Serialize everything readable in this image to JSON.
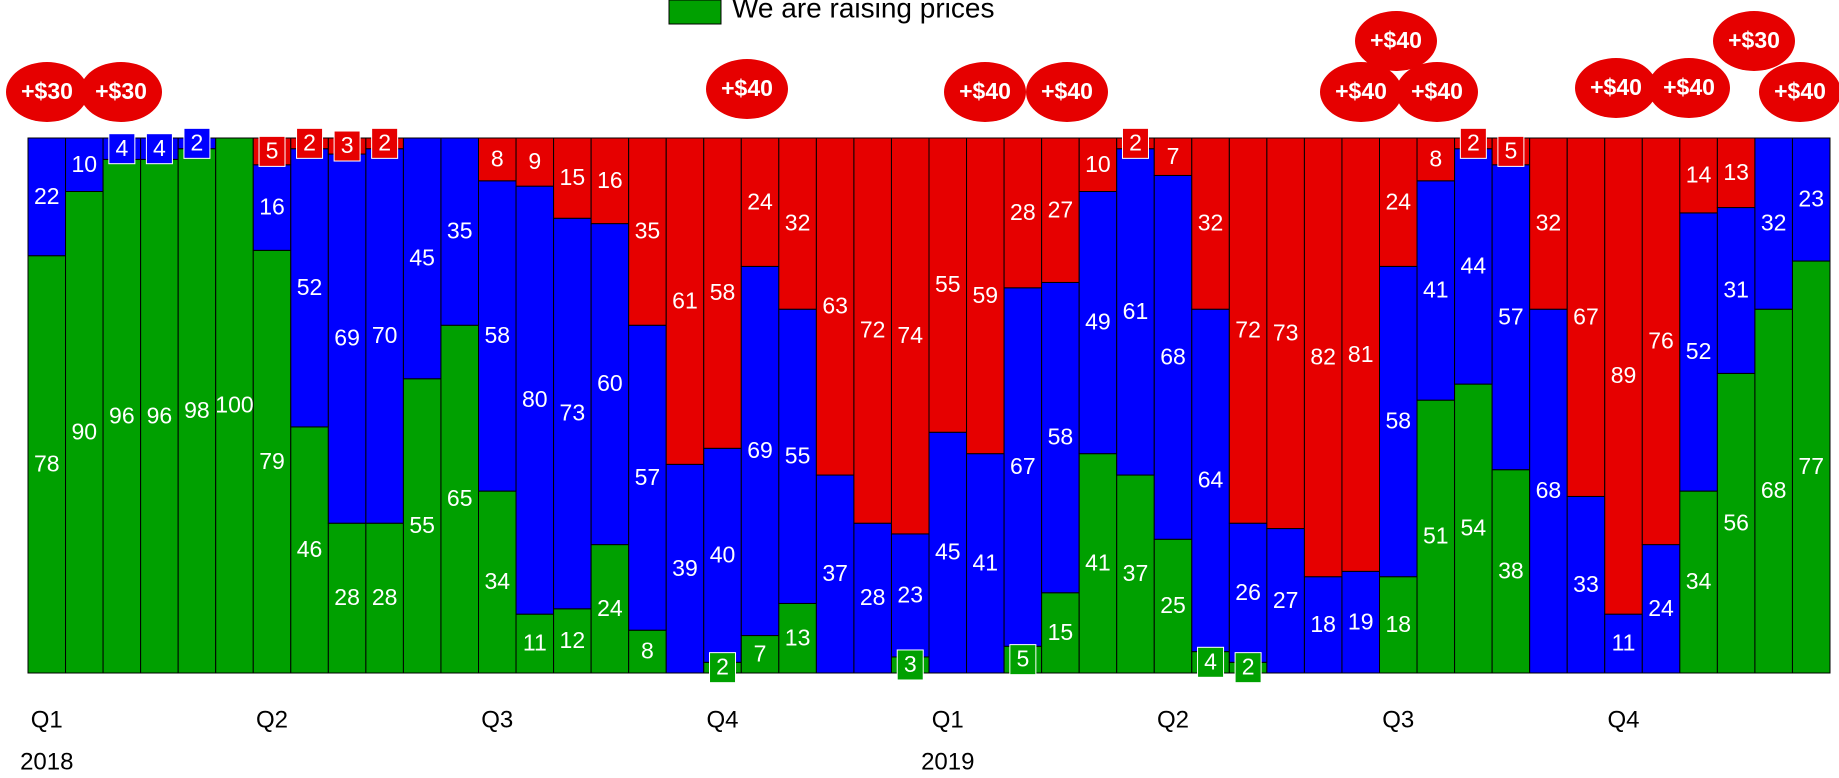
{
  "chart_data": {
    "type": "stacked_bar",
    "ylim": [
      0,
      100
    ],
    "categories": [
      "Q1",
      null,
      null,
      null,
      null,
      null,
      "Q2",
      null,
      null,
      null,
      null,
      null,
      "Q3",
      null,
      null,
      null,
      null,
      null,
      "Q4",
      null,
      null,
      null,
      null,
      null,
      "Q1",
      null,
      null,
      null,
      null,
      null,
      "Q2",
      null,
      null,
      null,
      null,
      null,
      "Q3",
      null,
      null,
      null,
      null,
      null,
      "Q4",
      null,
      null,
      null,
      null,
      null
    ],
    "category_groups": [
      "2018",
      null,
      null,
      null,
      null,
      null,
      null,
      null,
      null,
      null,
      null,
      null,
      null,
      null,
      null,
      null,
      null,
      null,
      null,
      null,
      null,
      null,
      null,
      null,
      "2019",
      null,
      null,
      null,
      null,
      null,
      null,
      null,
      null,
      null,
      null,
      null,
      null,
      null,
      null,
      null,
      null,
      null,
      null,
      null,
      null,
      null,
      null,
      null
    ],
    "series": [
      {
        "name": "We are raising prices",
        "color": "#00a000",
        "values": [
          78,
          90,
          96,
          96,
          98,
          100,
          79,
          46,
          28,
          28,
          55,
          65,
          34,
          11,
          12,
          24,
          8,
          0,
          2,
          7,
          13,
          0,
          0,
          3,
          0,
          0,
          5,
          15,
          41,
          37,
          25,
          4,
          2,
          0,
          0,
          0,
          18,
          51,
          54,
          38,
          0,
          0,
          0,
          0,
          34,
          56,
          68,
          77
        ]
      },
      {
        "color": "#0000ff",
        "values": [
          22,
          10,
          4,
          4,
          2,
          0,
          16,
          52,
          69,
          70,
          45,
          35,
          58,
          80,
          73,
          60,
          57,
          39,
          40,
          69,
          55,
          37,
          28,
          23,
          45,
          41,
          67,
          58,
          49,
          61,
          68,
          64,
          26,
          27,
          18,
          19,
          58,
          41,
          44,
          57,
          68,
          33,
          11,
          24,
          52,
          31,
          32,
          23
        ]
      },
      {
        "color": "#e60000",
        "values": [
          0,
          0,
          0,
          0,
          0,
          0,
          5,
          2,
          3,
          2,
          0,
          0,
          8,
          9,
          15,
          16,
          35,
          61,
          58,
          24,
          32,
          63,
          72,
          74,
          55,
          59,
          28,
          27,
          10,
          2,
          7,
          32,
          72,
          73,
          82,
          81,
          24,
          8,
          2,
          5,
          32,
          67,
          89,
          76,
          14,
          13,
          0,
          0
        ]
      }
    ],
    "annotations": [
      "+$30",
      "+$30",
      "+$40",
      "+$40",
      "+$40",
      "+$40",
      "+$40",
      "+$40",
      "+$40",
      "+$40",
      "+$30",
      "+$40"
    ]
  }
}
